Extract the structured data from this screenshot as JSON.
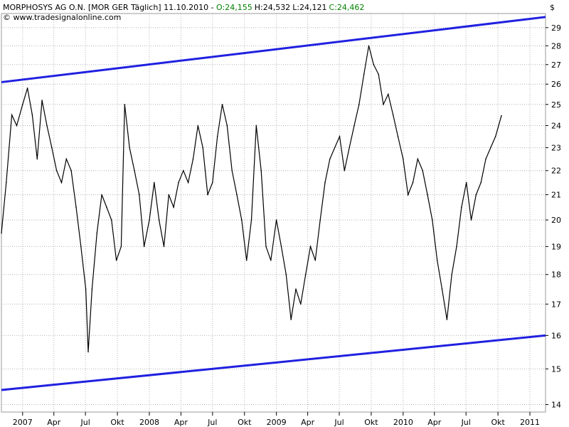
{
  "header": {
    "prefix": "MORPHOSYS AG O.N. [MOR GER  Täglich] 11.10.2010 - ",
    "open": "O:24,155",
    "high": "H:24,532",
    "low": "L:24,121",
    "close": "C:24,462",
    "copyright": "© www.tradesignalonline.com",
    "currency": "$"
  },
  "colors": {
    "price": "#000000",
    "trendline": "#2020e0",
    "grid": "#b4b4b4",
    "open_text": "#008000",
    "close_text": "#008000"
  },
  "chart_data": {
    "type": "line",
    "title": "MORPHOSYS AG O.N. [MOR GER Täglich] 11.10.2010",
    "ylabel": "$",
    "x_range": [
      "2006-11-01",
      "2011-02-15"
    ],
    "ylim": [
      13.8,
      29.8
    ],
    "y_scale": "log",
    "grid": true,
    "x_ticks": [
      {
        "date": "2007-01-01",
        "label": "2007"
      },
      {
        "date": "2007-04-01",
        "label": "Apr"
      },
      {
        "date": "2007-07-01",
        "label": "Jul"
      },
      {
        "date": "2007-10-01",
        "label": "Okt"
      },
      {
        "date": "2008-01-01",
        "label": "2008"
      },
      {
        "date": "2008-04-01",
        "label": "Apr"
      },
      {
        "date": "2008-07-01",
        "label": "Jul"
      },
      {
        "date": "2008-10-01",
        "label": "Okt"
      },
      {
        "date": "2009-01-01",
        "label": "2009"
      },
      {
        "date": "2009-04-01",
        "label": "Apr"
      },
      {
        "date": "2009-07-01",
        "label": "Jul"
      },
      {
        "date": "2009-10-01",
        "label": "Okt"
      },
      {
        "date": "2010-01-01",
        "label": "2010"
      },
      {
        "date": "2010-04-01",
        "label": "Apr"
      },
      {
        "date": "2010-07-01",
        "label": "Jul"
      },
      {
        "date": "2010-10-01",
        "label": "Okt"
      },
      {
        "date": "2011-01-01",
        "label": "2011"
      }
    ],
    "y_ticks": [
      14,
      15,
      16,
      17,
      18,
      19,
      20,
      21,
      22,
      23,
      24,
      25,
      26,
      27,
      28,
      29
    ],
    "series": [
      {
        "points": [
          [
            "2006-11-01",
            19.5
          ],
          [
            "2006-11-15",
            21.5
          ],
          [
            "2006-12-01",
            24.5
          ],
          [
            "2006-12-15",
            24.0
          ],
          [
            "2007-01-01",
            25.0
          ],
          [
            "2007-01-15",
            25.8
          ],
          [
            "2007-01-29",
            24.5
          ],
          [
            "2007-02-12",
            22.5
          ],
          [
            "2007-02-26",
            25.2
          ],
          [
            "2007-03-12",
            24.0
          ],
          [
            "2007-03-26",
            23.0
          ],
          [
            "2007-04-09",
            22.0
          ],
          [
            "2007-04-23",
            21.5
          ],
          [
            "2007-05-07",
            22.5
          ],
          [
            "2007-05-21",
            22.0
          ],
          [
            "2007-06-04",
            20.5
          ],
          [
            "2007-06-18",
            19.0
          ],
          [
            "2007-07-02",
            17.5
          ],
          [
            "2007-07-09",
            15.5
          ],
          [
            "2007-07-20",
            17.5
          ],
          [
            "2007-08-03",
            19.5
          ],
          [
            "2007-08-17",
            21.0
          ],
          [
            "2007-08-31",
            20.5
          ],
          [
            "2007-09-14",
            20.0
          ],
          [
            "2007-09-28",
            18.5
          ],
          [
            "2007-10-12",
            19.0
          ],
          [
            "2007-10-22",
            25.0
          ],
          [
            "2007-11-05",
            23.0
          ],
          [
            "2007-11-19",
            22.0
          ],
          [
            "2007-12-03",
            21.0
          ],
          [
            "2007-12-17",
            19.0
          ],
          [
            "2008-01-01",
            20.0
          ],
          [
            "2008-01-15",
            21.5
          ],
          [
            "2008-01-29",
            20.0
          ],
          [
            "2008-02-12",
            19.0
          ],
          [
            "2008-02-26",
            21.0
          ],
          [
            "2008-03-11",
            20.5
          ],
          [
            "2008-03-25",
            21.5
          ],
          [
            "2008-04-08",
            22.0
          ],
          [
            "2008-04-22",
            21.5
          ],
          [
            "2008-05-06",
            22.5
          ],
          [
            "2008-05-20",
            24.0
          ],
          [
            "2008-06-03",
            23.0
          ],
          [
            "2008-06-17",
            21.0
          ],
          [
            "2008-07-01",
            21.5
          ],
          [
            "2008-07-15",
            23.5
          ],
          [
            "2008-07-29",
            25.0
          ],
          [
            "2008-08-12",
            24.0
          ],
          [
            "2008-08-26",
            22.0
          ],
          [
            "2008-09-09",
            21.0
          ],
          [
            "2008-09-23",
            20.0
          ],
          [
            "2008-10-07",
            18.5
          ],
          [
            "2008-10-21",
            20.0
          ],
          [
            "2008-11-04",
            24.0
          ],
          [
            "2008-11-18",
            22.0
          ],
          [
            "2008-12-02",
            19.0
          ],
          [
            "2008-12-16",
            18.5
          ],
          [
            "2009-01-01",
            20.0
          ],
          [
            "2009-01-15",
            19.0
          ],
          [
            "2009-01-29",
            18.0
          ],
          [
            "2009-02-12",
            16.5
          ],
          [
            "2009-02-26",
            17.5
          ],
          [
            "2009-03-12",
            17.0
          ],
          [
            "2009-03-26",
            18.0
          ],
          [
            "2009-04-09",
            19.0
          ],
          [
            "2009-04-23",
            18.5
          ],
          [
            "2009-05-07",
            20.0
          ],
          [
            "2009-05-21",
            21.5
          ],
          [
            "2009-06-04",
            22.5
          ],
          [
            "2009-06-18",
            23.0
          ],
          [
            "2009-07-02",
            23.5
          ],
          [
            "2009-07-16",
            22.0
          ],
          [
            "2009-07-30",
            23.0
          ],
          [
            "2009-08-13",
            24.0
          ],
          [
            "2009-08-27",
            25.0
          ],
          [
            "2009-09-10",
            26.5
          ],
          [
            "2009-09-24",
            28.0
          ],
          [
            "2009-10-08",
            27.0
          ],
          [
            "2009-10-22",
            26.5
          ],
          [
            "2009-11-05",
            25.0
          ],
          [
            "2009-11-19",
            25.5
          ],
          [
            "2009-12-03",
            24.5
          ],
          [
            "2009-12-17",
            23.5
          ],
          [
            "2010-01-01",
            22.5
          ],
          [
            "2010-01-15",
            21.0
          ],
          [
            "2010-01-29",
            21.5
          ],
          [
            "2010-02-12",
            22.5
          ],
          [
            "2010-02-26",
            22.0
          ],
          [
            "2010-03-12",
            21.0
          ],
          [
            "2010-03-26",
            20.0
          ],
          [
            "2010-04-09",
            18.5
          ],
          [
            "2010-04-23",
            17.5
          ],
          [
            "2010-05-07",
            16.5
          ],
          [
            "2010-05-21",
            18.0
          ],
          [
            "2010-06-04",
            19.0
          ],
          [
            "2010-06-18",
            20.5
          ],
          [
            "2010-07-02",
            21.5
          ],
          [
            "2010-07-16",
            20.0
          ],
          [
            "2010-07-30",
            21.0
          ],
          [
            "2010-08-13",
            21.5
          ],
          [
            "2010-08-27",
            22.5
          ],
          [
            "2010-09-10",
            23.0
          ],
          [
            "2010-09-24",
            23.5
          ],
          [
            "2010-10-11",
            24.46
          ]
        ]
      }
    ],
    "trendlines": [
      {
        "points": [
          [
            "2006-11-01",
            26.1
          ],
          [
            "2011-02-15",
            29.6
          ]
        ]
      },
      {
        "points": [
          [
            "2006-11-01",
            14.4
          ],
          [
            "2011-02-15",
            16.0
          ]
        ]
      }
    ]
  }
}
